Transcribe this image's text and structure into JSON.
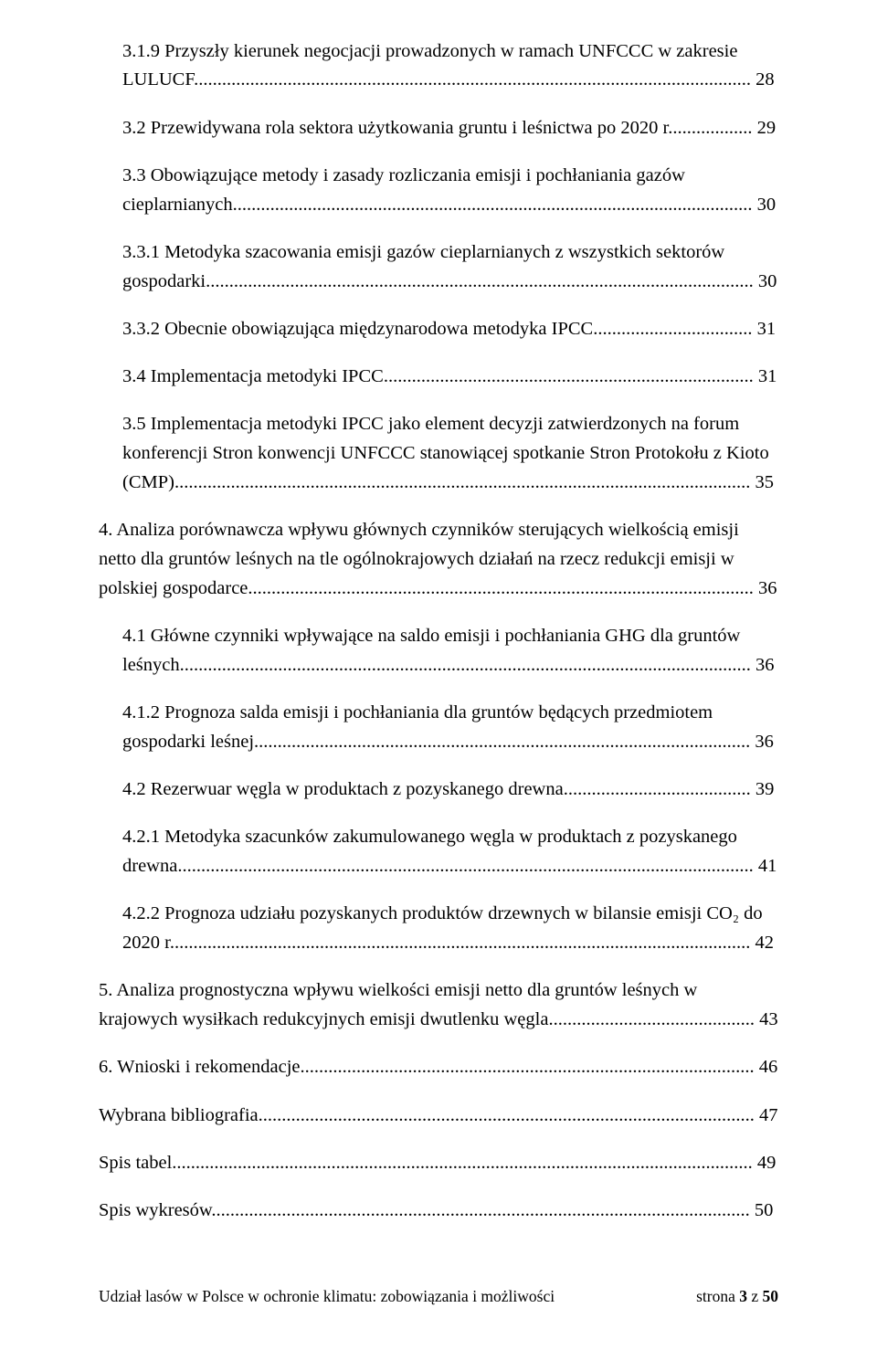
{
  "toc": [
    {
      "text": "3.1.9 Przyszły kierunek negocjacji prowadzonych w ramach UNFCCC  w zakresie LULUCF",
      "page": "28",
      "indent": 1
    },
    {
      "text": "3.2 Przewidywana rola sektora użytkowania gruntu i leśnictwa po 2020 r.",
      "page": "29",
      "indent": 1
    },
    {
      "text": "3.3 Obowiązujące metody i zasady rozliczania emisji i pochłaniania gazów cieplarnianych",
      "page": "30",
      "indent": 1
    },
    {
      "text": "3.3.1 Metodyka szacowania emisji gazów cieplarnianych z wszystkich sektorów gospodarki",
      "page": "30",
      "indent": 2
    },
    {
      "text": "3.3.2 Obecnie obowiązująca międzynarodowa metodyka IPCC",
      "page": "31",
      "indent": 2
    },
    {
      "text": "3.4 Implementacja metodyki IPCC",
      "page": "31",
      "indent": 1
    },
    {
      "text": "3.5 Implementacja metodyki IPCC jako element decyzji zatwierdzonych  na forum konferencji Stron konwencji UNFCCC stanowiącej spotkanie  Stron Protokołu z Kioto (CMP)",
      "page": "35",
      "indent": 1
    },
    {
      "text": "4. Analiza porównawcza wpływu głównych czynników sterujących wielkością emisji netto dla gruntów leśnych na tle ogólnokrajowych działań na rzecz redukcji emisji w polskiej gospodarce",
      "page": "36",
      "indent": 0
    },
    {
      "text": "4.1 Główne czynniki wpływające na saldo emisji i pochłaniania GHG  dla gruntów leśnych",
      "page": "36",
      "indent": 1
    },
    {
      "text": "4.1.2 Prognoza salda emisji i pochłaniania dla gruntów będących przedmiotem gospodarki leśnej",
      "page": "36",
      "indent": 2
    },
    {
      "text": "4.2 Rezerwuar węgla w produktach z pozyskanego drewna",
      "page": "39",
      "indent": 1
    },
    {
      "text": "4.2.1 Metodyka szacunków zakumulowanego węgla w produktach  z pozyskanego drewna",
      "page": "41",
      "indent": 2
    },
    {
      "text": "4.2.2 Prognoza udziału pozyskanych produktów drzewnych w bilansie emisji CO₂ do 2020 r.",
      "page": "42",
      "indent": 2
    },
    {
      "text": "5. Analiza prognostyczna wpływu wielkości emisji netto  dla gruntów leśnych w krajowych wysiłkach redukcyjnych emisji dwutlenku węgla",
      "page": "43",
      "indent": 0
    },
    {
      "text": "6. Wnioski i rekomendacje",
      "page": "46",
      "indent": 0
    },
    {
      "text": "Wybrana bibliografia",
      "page": "47",
      "indent": 0
    },
    {
      "text": "Spis tabel",
      "page": "49",
      "indent": 0
    },
    {
      "text": "Spis wykresów",
      "page": "50",
      "indent": 0
    }
  ],
  "footer": {
    "left": "Udział lasów w Polsce w ochronie klimatu: zobowiązania i możliwości",
    "right_prefix": "strona ",
    "page_current": "3",
    "right_mid": " z ",
    "page_total": "50"
  }
}
